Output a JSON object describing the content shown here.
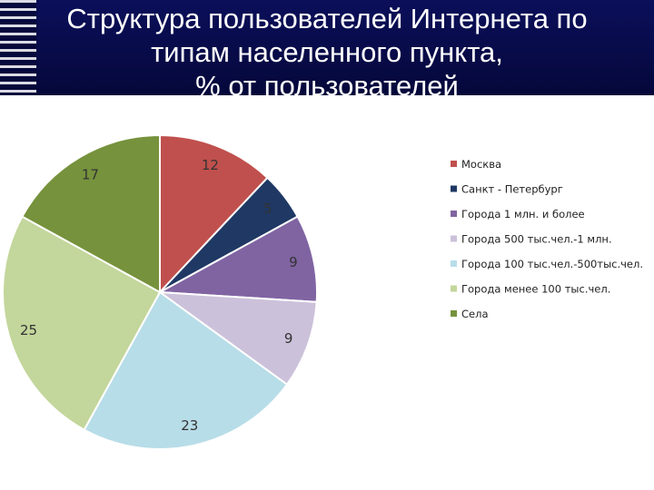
{
  "title": "Структура пользователей Интернета по\nтипам населенного пункта,\n% от пользователей",
  "chart_data": {
    "type": "pie",
    "title": "Структура пользователей Интернета по типам населенного пункта, % от пользователей",
    "legend_position": "right",
    "slices": [
      {
        "label": "Москва",
        "value": 12,
        "color": "#c0504d"
      },
      {
        "label": "Санкт - Петербург",
        "value": 5,
        "color": "#1f3864"
      },
      {
        "label": "Города 1 млн. и более",
        "value": 9,
        "color": "#8064a2"
      },
      {
        "label": "Города 500 тыс.чел.-1 млн.",
        "value": 9,
        "color": "#ccc1da"
      },
      {
        "label": "Города 100 тыс.чел.-500тыс.чел.",
        "value": 23,
        "color": "#b7dde8"
      },
      {
        "label": "Города менее 100 тыс.чел.",
        "value": 25,
        "color": "#c3d69b"
      },
      {
        "label": "Села",
        "value": 17,
        "color": "#76923c"
      }
    ]
  }
}
